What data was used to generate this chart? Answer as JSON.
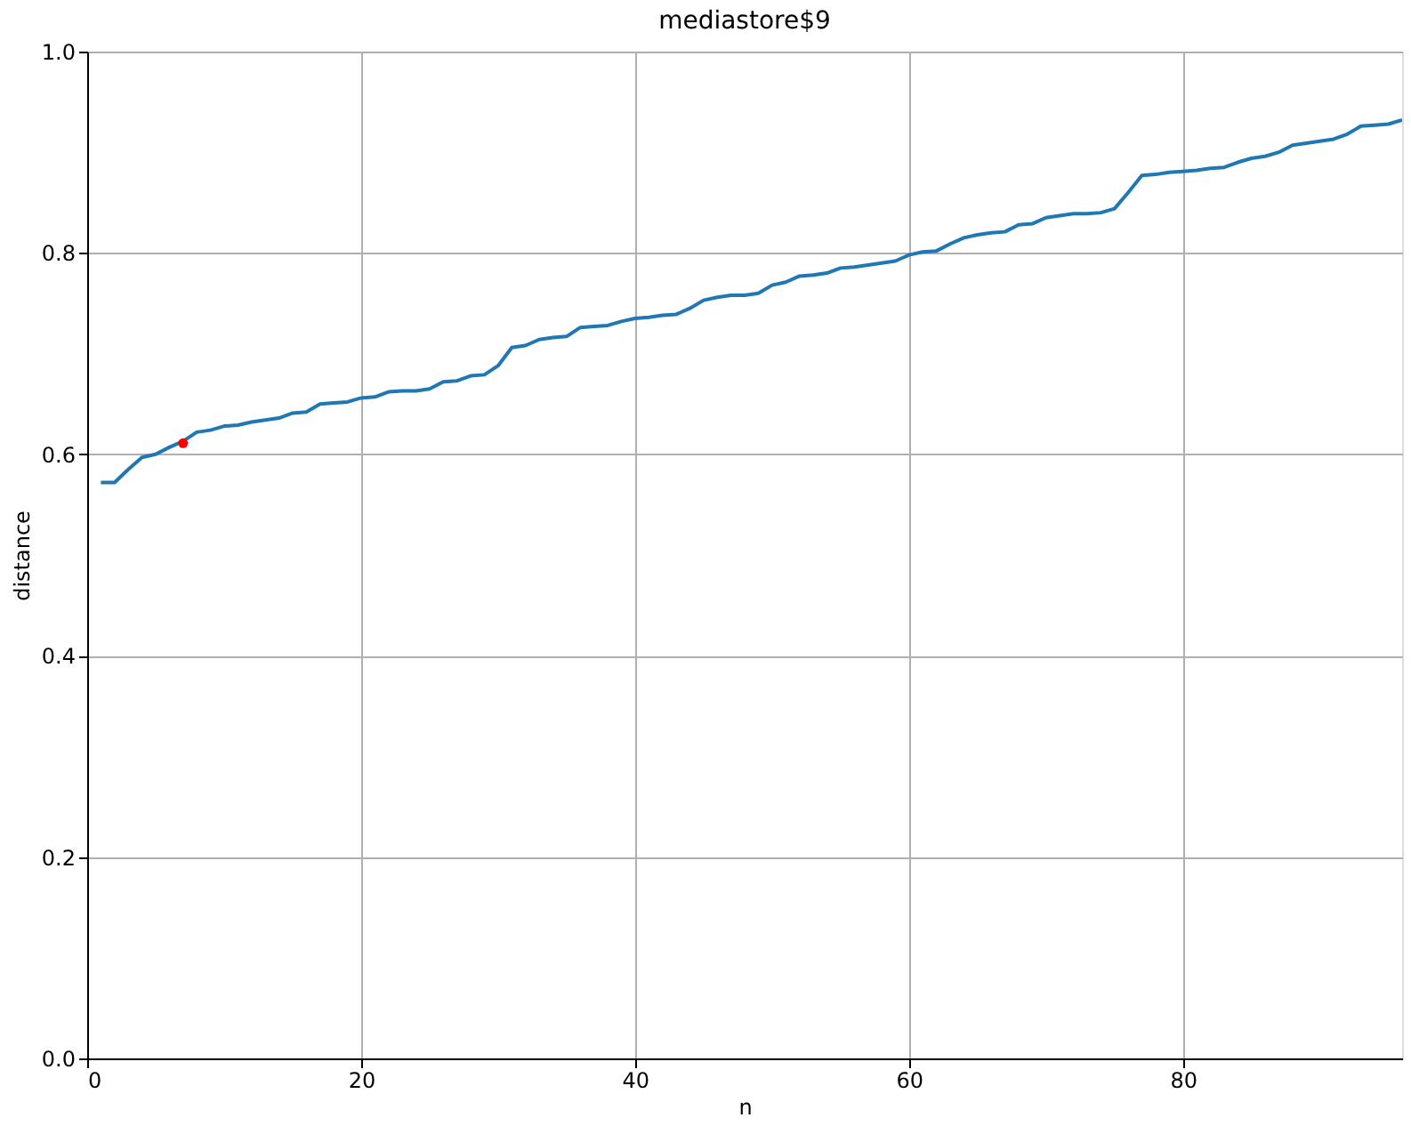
{
  "chart_data": {
    "type": "line",
    "title": "mediastore$9",
    "xlabel": "n",
    "ylabel": "distance",
    "xlim": [
      0,
      96
    ],
    "xticks": [
      0,
      20,
      40,
      60,
      80
    ],
    "ylim": [
      0,
      1
    ],
    "yticks": [
      {
        "value": 0,
        "label": "0.0"
      },
      {
        "value": 0.2,
        "label": "0.2"
      },
      {
        "value": 0.4,
        "label": "0.4"
      },
      {
        "value": 0.6,
        "label": "0.6"
      },
      {
        "value": 0.8,
        "label": "0.8"
      },
      {
        "value": 1,
        "label": "1.0"
      }
    ],
    "grid": true,
    "series": [
      {
        "color": "#1f77b4",
        "x": [
          1,
          2,
          3,
          4,
          5,
          6,
          7,
          8,
          9,
          10,
          11,
          12,
          13,
          14,
          15,
          16,
          17,
          18,
          19,
          20,
          21,
          22,
          23,
          24,
          25,
          26,
          27,
          28,
          29,
          30,
          31,
          32,
          33,
          34,
          35,
          36,
          37,
          38,
          39,
          40,
          41,
          42,
          43,
          44,
          45,
          46,
          47,
          48,
          49,
          50,
          51,
          52,
          53,
          54,
          55,
          56,
          57,
          58,
          59,
          60,
          61,
          62,
          63,
          64,
          65,
          66,
          67,
          68,
          69,
          70,
          71,
          72,
          73,
          74,
          75,
          76,
          77,
          78,
          79,
          80,
          81,
          82,
          83,
          84,
          85,
          86,
          87,
          88,
          89,
          90,
          91,
          92,
          93,
          94,
          95,
          96
        ],
        "values": [
          0.572,
          0.572,
          0.585,
          0.597,
          0.6,
          0.607,
          0.613,
          0.622,
          0.624,
          0.628,
          0.629,
          0.632,
          0.634,
          0.636,
          0.641,
          0.642,
          0.65,
          0.651,
          0.652,
          0.656,
          0.657,
          0.662,
          0.663,
          0.663,
          0.665,
          0.672,
          0.673,
          0.678,
          0.679,
          0.688,
          0.706,
          0.708,
          0.714,
          0.716,
          0.717,
          0.726,
          0.727,
          0.728,
          0.732,
          0.735,
          0.736,
          0.738,
          0.739,
          0.745,
          0.753,
          0.756,
          0.758,
          0.758,
          0.76,
          0.768,
          0.771,
          0.777,
          0.778,
          0.78,
          0.785,
          0.786,
          0.788,
          0.79,
          0.792,
          0.798,
          0.801,
          0.802,
          0.809,
          0.815,
          0.818,
          0.82,
          0.821,
          0.828,
          0.829,
          0.835,
          0.837,
          0.839,
          0.839,
          0.84,
          0.844,
          0.86,
          0.877,
          0.878,
          0.88,
          0.881,
          0.882,
          0.884,
          0.885,
          0.89,
          0.894,
          0.896,
          0.9,
          0.907,
          0.909,
          0.911,
          0.913,
          0.918,
          0.926,
          0.927,
          0.928,
          0.932
        ]
      },
      {
        "type": "scatter",
        "color": "#ff0000",
        "marker": "circle",
        "x": [
          7
        ],
        "values": [
          0.611
        ]
      }
    ]
  }
}
